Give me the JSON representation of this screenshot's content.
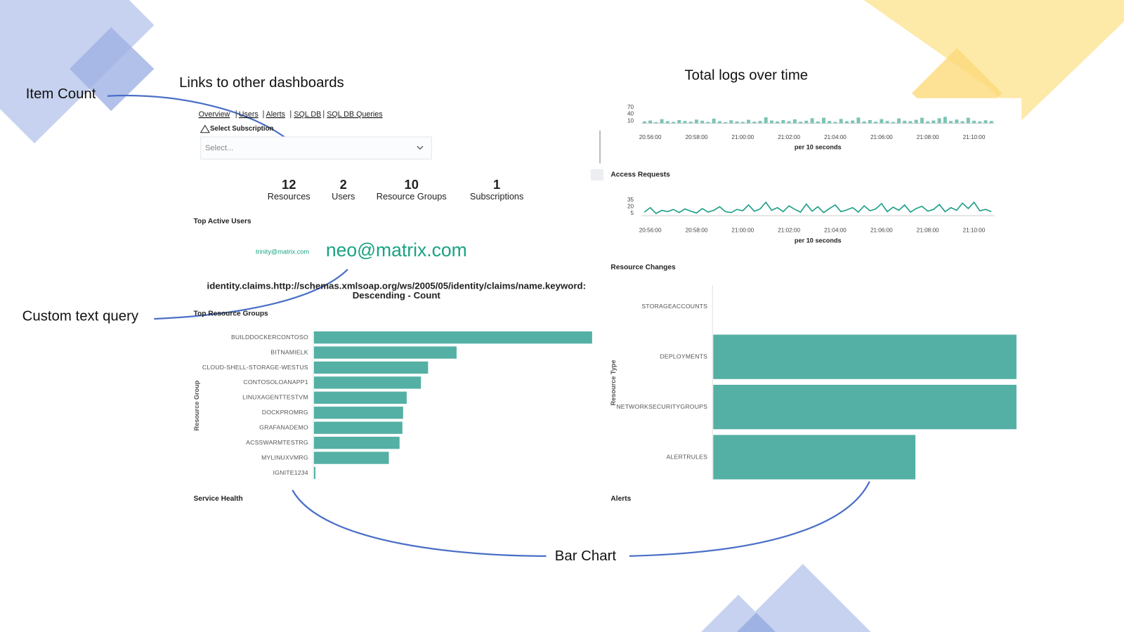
{
  "annotations": {
    "item_count": "Item Count",
    "links": "Links to other dashboards",
    "total_logs": "Total logs over time",
    "custom_text_query": "Custom text query",
    "bar_chart": "Bar Chart"
  },
  "nav": {
    "links": [
      "Overview",
      "Users",
      "Alerts",
      "SQL DB",
      "SQL DB Queries"
    ]
  },
  "select": {
    "label": "Select Subscription",
    "placeholder": "Select..."
  },
  "metrics": [
    {
      "value": 12,
      "label": "Resources"
    },
    {
      "value": 2,
      "label": "Users"
    },
    {
      "value": 10,
      "label": "Resource Groups"
    },
    {
      "value": 1,
      "label": "Subscriptions"
    }
  ],
  "top_active_users": {
    "title": "Top Active Users",
    "users": [
      "trinity@matrix.com",
      "neo@matrix.com"
    ]
  },
  "query": {
    "lines": [
      "identity.claims.http://schemas.xmlsoap.org/ws/2005/05/identity/claims/name.keyword:",
      "Descending - Count"
    ]
  },
  "panels": {
    "service_health": "Service Health",
    "alerts": "Alerts"
  },
  "chart_data": [
    {
      "type": "bar",
      "color": "#7cc4b6",
      "x_label": "per 10 seconds",
      "categories": [
        null,
        "20:56:00",
        null,
        null,
        null,
        null,
        null,
        null,
        null,
        "20:58:00",
        null,
        null,
        null,
        null,
        null,
        null,
        null,
        "21:00:00",
        null,
        null,
        null,
        null,
        null,
        null,
        null,
        "21:02:00",
        null,
        null,
        null,
        null,
        null,
        null,
        null,
        "21:04:00",
        null,
        null,
        null,
        null,
        null,
        null,
        null,
        "21:06:00",
        null,
        null,
        null,
        null,
        null,
        null,
        null,
        "21:08:00",
        null,
        null,
        null,
        null,
        null,
        null,
        null,
        "21:10:00",
        null,
        null,
        null
      ],
      "values": [
        8,
        12,
        5,
        18,
        9,
        6,
        14,
        10,
        7,
        16,
        11,
        6,
        20,
        9,
        5,
        13,
        8,
        6,
        15,
        7,
        10,
        26,
        12,
        8,
        14,
        9,
        17,
        7,
        11,
        22,
        8,
        24,
        10,
        6,
        19,
        9,
        12,
        25,
        8,
        14,
        7,
        18,
        10,
        6,
        21,
        11,
        9,
        15,
        24,
        8,
        12,
        22,
        28,
        10,
        16,
        9,
        24,
        11,
        8,
        13,
        10
      ],
      "ylim": [
        0,
        75
      ],
      "yticks": [
        10,
        40,
        70
      ]
    },
    {
      "type": "line",
      "title": "Access Requests",
      "color": "#1a9e86",
      "x_label": "per 10 seconds",
      "categories": [
        null,
        "20:56:00",
        null,
        null,
        null,
        null,
        null,
        null,
        null,
        "20:58:00",
        null,
        null,
        null,
        null,
        null,
        null,
        null,
        "21:00:00",
        null,
        null,
        null,
        null,
        null,
        null,
        null,
        "21:02:00",
        null,
        null,
        null,
        null,
        null,
        null,
        null,
        "21:04:00",
        null,
        null,
        null,
        null,
        null,
        null,
        null,
        "21:06:00",
        null,
        null,
        null,
        null,
        null,
        null,
        null,
        "21:08:00",
        null,
        null,
        null,
        null,
        null,
        null,
        null,
        "21:10:00",
        null,
        null,
        null
      ],
      "values": [
        8,
        18,
        5,
        12,
        9,
        14,
        7,
        15,
        10,
        6,
        16,
        8,
        12,
        20,
        9,
        7,
        14,
        11,
        24,
        10,
        15,
        30,
        12,
        18,
        9,
        22,
        14,
        8,
        26,
        10,
        20,
        7,
        16,
        24,
        9,
        13,
        18,
        8,
        22,
        11,
        15,
        27,
        9,
        19,
        12,
        24,
        8,
        16,
        21,
        10,
        14,
        25,
        9,
        18,
        12,
        28,
        16,
        30,
        11,
        14,
        9
      ],
      "ylim": [
        0,
        40
      ],
      "yticks": [
        5,
        20,
        35
      ]
    },
    {
      "type": "bar",
      "orientation": "horizontal",
      "title": "Top Resource Groups",
      "y_label": "Resource Group",
      "color": "#54b0a4",
      "categories": [
        "BUILDDOCKERCONTOSO",
        "BITNAMIELK",
        "CLOUD-SHELL-STORAGE-WESTUS",
        "CONTOSOLOANAPP1",
        "LINUXAGENTTESTVM",
        "DOCKPROMRG",
        "GRAFANADEMO",
        "ACSSWARMTESTRG",
        "MYLINUXVMRG",
        "IGNITE1234"
      ],
      "values": [
        390,
        200,
        160,
        150,
        130,
        125,
        124,
        120,
        105,
        2
      ],
      "xlim": [
        0,
        390
      ]
    },
    {
      "type": "bar",
      "orientation": "horizontal",
      "title": "Resource Changes",
      "y_label": "Resource Type",
      "color": "#54b0a4",
      "categories": [
        "STORAGEACCOUNTS",
        "DEPLOYMENTS",
        "NETWORKSECURITYGROUPS",
        "ALERTRULES"
      ],
      "values": [
        0,
        3,
        3,
        2
      ],
      "xlim": [
        0,
        3
      ]
    }
  ]
}
